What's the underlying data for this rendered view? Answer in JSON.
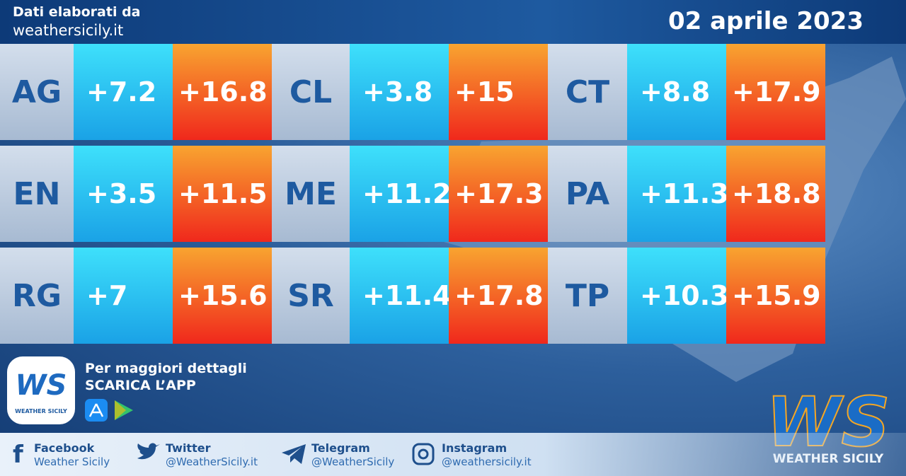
{
  "header": {
    "source_label": "Dati elaborati da",
    "source_site": "weathersicily.it",
    "date": "02 aprile 2023"
  },
  "table": {
    "rows": [
      {
        "code": "AG",
        "min": "+7.2",
        "max": "+16.8"
      },
      {
        "code": "CL",
        "min": "+3.8",
        "max": "+15"
      },
      {
        "code": "CT",
        "min": "+8.8",
        "max": "+17.9"
      },
      {
        "code": "EN",
        "min": "+3.5",
        "max": "+11.5"
      },
      {
        "code": "ME",
        "min": "+11.2",
        "max": "+17.3"
      },
      {
        "code": "PA",
        "min": "+11.3",
        "max": "+18.8"
      },
      {
        "code": "RG",
        "min": "+7",
        "max": "+15.6"
      },
      {
        "code": "SR",
        "min": "+11.4",
        "max": "+17.8"
      },
      {
        "code": "TP",
        "min": "+10.3",
        "max": "+15.9"
      }
    ]
  },
  "promo": {
    "line1": "Per maggiori dettagli",
    "line2": "SCARICA L’APP"
  },
  "logo": {
    "mark": "WS",
    "caption": "WEATHER SICILY"
  },
  "social": [
    {
      "network": "Facebook",
      "handle": "Weather Sicily"
    },
    {
      "network": "Twitter",
      "handle": "@WeatherSicily.it"
    },
    {
      "network": "Telegram",
      "handle": "@WeatherSicily"
    },
    {
      "network": "Instagram",
      "handle": "@weathersicily.it"
    }
  ]
}
